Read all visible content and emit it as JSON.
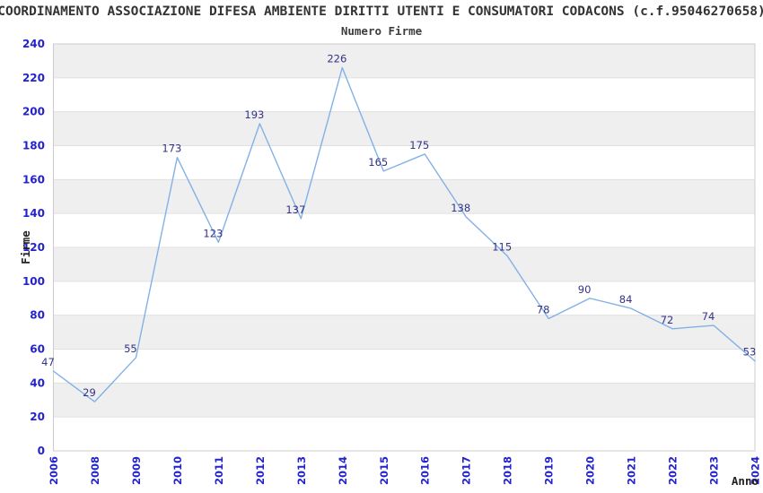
{
  "header": {
    "title": "COORDINAMENTO ASSOCIAZIONE DIFESA AMBIENTE DIRITTI UTENTI E CONSUMATORI CODACONS (c.f.95046270658)",
    "subtitle": "Numero Firme"
  },
  "chart_data": {
    "type": "line",
    "title": "Numero Firme",
    "categories": [
      "2006",
      "2008",
      "2009",
      "2010",
      "2011",
      "2012",
      "2013",
      "2014",
      "2015",
      "2016",
      "2017",
      "2018",
      "2019",
      "2020",
      "2021",
      "2022",
      "2023",
      "2024"
    ],
    "values": [
      47,
      29,
      55,
      173,
      123,
      193,
      137,
      226,
      165,
      175,
      138,
      115,
      78,
      90,
      84,
      72,
      74,
      53
    ],
    "xlabel": "Anno",
    "ylabel": "Firme",
    "ylim": [
      0,
      240
    ],
    "ytick_step": 20,
    "grid": "horizontal-gridlines-with-alternating-bands",
    "legend": "none",
    "data_labels_shown": true,
    "colors": {
      "line": "#82b1e6",
      "tick_label": "#2323cc",
      "data_label": "#333388",
      "band_fill": "#efefef",
      "band_alt_fill": "#ffffff",
      "grid_line": "#e0e0e0",
      "plot_border": "#cccccc",
      "title_text": "#333333"
    }
  }
}
